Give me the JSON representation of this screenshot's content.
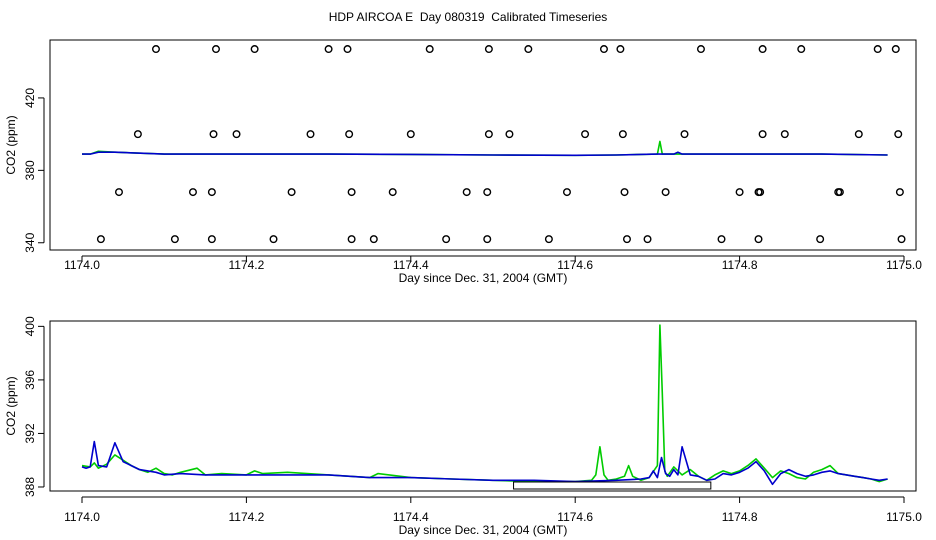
{
  "title": "HDP AIRCOA E  Day 080319  Calibrated Timeseries",
  "colors": {
    "green": "#00cc00",
    "blue": "#0000cc",
    "axis": "#000000",
    "points": "#000000"
  },
  "chart_data": [
    {
      "type": "scatter+line",
      "xlabel": "Day since Dec. 31, 2004 (GMT)",
      "ylabel": "CO2 (ppm)",
      "xlim": [
        1174.0,
        1175.0
      ],
      "ylim": [
        336,
        452
      ],
      "x_ticks": [
        1174.0,
        1174.2,
        1174.4,
        1174.6,
        1174.8,
        1175.0
      ],
      "x_tick_labels": [
        "1174.0",
        "1174.2",
        "1174.4",
        "1174.6",
        "1174.8",
        "1175.0"
      ],
      "y_ticks": [
        340,
        380,
        420
      ],
      "y_tick_labels": [
        "340",
        "380",
        "420"
      ],
      "grid": false,
      "point_series": [
        {
          "level": 342,
          "x": [
            1174.023,
            1174.113,
            1174.158,
            1174.233,
            1174.328,
            1174.355,
            1174.443,
            1174.493,
            1174.568,
            1174.663,
            1174.688,
            1174.778,
            1174.823,
            1174.898,
            1174.997
          ]
        },
        {
          "level": 368,
          "x": [
            1174.045,
            1174.135,
            1174.158,
            1174.255,
            1174.328,
            1174.378,
            1174.468,
            1174.493,
            1174.59,
            1174.66,
            1174.71,
            1174.8,
            1174.823,
            1174.825,
            1174.92,
            1174.922,
            1174.995
          ]
        },
        {
          "level": 400,
          "x": [
            1174.068,
            1174.16,
            1174.188,
            1174.278,
            1174.325,
            1174.4,
            1174.495,
            1174.52,
            1174.612,
            1174.658,
            1174.733,
            1174.828,
            1174.855,
            1174.945,
            1174.993
          ]
        },
        {
          "level": 447,
          "x": [
            1174.09,
            1174.163,
            1174.21,
            1174.3,
            1174.323,
            1174.423,
            1174.495,
            1174.543,
            1174.635,
            1174.655,
            1174.753,
            1174.828,
            1174.875,
            1174.968,
            1174.99
          ]
        }
      ],
      "series": [
        {
          "color": "green",
          "x": [
            1174.0,
            1174.01,
            1174.02,
            1174.04,
            1174.1,
            1174.2,
            1174.3,
            1174.4,
            1174.5,
            1174.6,
            1174.65,
            1174.7,
            1174.703,
            1174.706,
            1174.71,
            1174.72,
            1174.8,
            1174.9,
            1174.98
          ],
          "values": [
            389,
            389,
            390.5,
            390,
            389,
            389,
            389,
            388.8,
            388.5,
            388.3,
            388.5,
            389,
            396,
            389,
            389,
            389,
            389,
            389,
            388.5
          ]
        },
        {
          "color": "blue",
          "x": [
            1174.0,
            1174.01,
            1174.02,
            1174.04,
            1174.1,
            1174.2,
            1174.3,
            1174.4,
            1174.5,
            1174.6,
            1174.65,
            1174.7,
            1174.72,
            1174.725,
            1174.73,
            1174.8,
            1174.9,
            1174.98
          ],
          "values": [
            389,
            389,
            390,
            390,
            389,
            389,
            389,
            388.8,
            388.5,
            388.3,
            388.5,
            389,
            389,
            390,
            389,
            389,
            389,
            388.5
          ]
        }
      ]
    },
    {
      "type": "line",
      "xlabel": "Day since Dec. 31, 2004 (GMT)",
      "ylabel": "CO2 (ppm)",
      "xlim": [
        1174.0,
        1175.0
      ],
      "ylim": [
        387.7,
        400.4
      ],
      "x_ticks": [
        1174.0,
        1174.2,
        1174.4,
        1174.6,
        1174.8,
        1175.0
      ],
      "x_tick_labels": [
        "1174.0",
        "1174.2",
        "1174.4",
        "1174.6",
        "1174.8",
        "1175.0"
      ],
      "y_ticks": [
        388,
        392,
        396,
        400
      ],
      "y_tick_labels": [
        "388",
        "392",
        "396",
        "400"
      ],
      "grid": false,
      "bracket": {
        "x_start": 1174.525,
        "x_end": 1174.765
      },
      "series": [
        {
          "color": "green",
          "x": [
            1174.0,
            1174.01,
            1174.015,
            1174.02,
            1174.03,
            1174.04,
            1174.05,
            1174.06,
            1174.07,
            1174.08,
            1174.09,
            1174.1,
            1174.11,
            1174.12,
            1174.14,
            1174.15,
            1174.17,
            1174.2,
            1174.21,
            1174.22,
            1174.25,
            1174.3,
            1174.35,
            1174.36,
            1174.4,
            1174.45,
            1174.5,
            1174.55,
            1174.6,
            1174.62,
            1174.625,
            1174.63,
            1174.635,
            1174.64,
            1174.65,
            1174.66,
            1174.665,
            1174.67,
            1174.68,
            1174.69,
            1174.7,
            1174.703,
            1174.706,
            1174.709,
            1174.712,
            1174.72,
            1174.73,
            1174.74,
            1174.75,
            1174.76,
            1174.77,
            1174.78,
            1174.79,
            1174.8,
            1174.81,
            1174.82,
            1174.83,
            1174.84,
            1174.85,
            1174.86,
            1174.87,
            1174.88,
            1174.89,
            1174.9,
            1174.91,
            1174.92,
            1174.93,
            1174.94,
            1174.95,
            1174.96,
            1174.97,
            1174.98
          ],
          "values": [
            389.6,
            389.5,
            389.8,
            389.4,
            389.7,
            390.4,
            390.0,
            389.6,
            389.3,
            389.1,
            389.4,
            389.0,
            388.9,
            389.1,
            389.4,
            388.9,
            389.0,
            388.9,
            389.2,
            389.0,
            389.1,
            388.9,
            388.7,
            389.0,
            388.7,
            388.6,
            388.5,
            388.4,
            388.4,
            388.5,
            388.9,
            391.0,
            388.9,
            388.5,
            388.6,
            388.8,
            389.6,
            388.8,
            388.5,
            388.7,
            389.6,
            400.1,
            395.0,
            389.2,
            388.8,
            389.5,
            388.9,
            389.3,
            388.8,
            388.5,
            388.9,
            389.2,
            389.0,
            389.2,
            389.6,
            390.1,
            389.4,
            388.7,
            389.2,
            389.0,
            388.7,
            388.6,
            389.1,
            389.3,
            389.6,
            389.0,
            388.9,
            388.8,
            388.7,
            388.6,
            388.4,
            388.6
          ]
        },
        {
          "color": "blue",
          "x": [
            1174.0,
            1174.005,
            1174.01,
            1174.015,
            1174.02,
            1174.03,
            1174.04,
            1174.045,
            1174.05,
            1174.06,
            1174.07,
            1174.08,
            1174.09,
            1174.1,
            1174.12,
            1174.15,
            1174.2,
            1174.25,
            1174.3,
            1174.35,
            1174.4,
            1174.45,
            1174.5,
            1174.55,
            1174.6,
            1174.65,
            1174.68,
            1174.69,
            1174.695,
            1174.7,
            1174.705,
            1174.71,
            1174.715,
            1174.72,
            1174.725,
            1174.73,
            1174.74,
            1174.75,
            1174.76,
            1174.77,
            1174.78,
            1174.79,
            1174.8,
            1174.81,
            1174.82,
            1174.83,
            1174.84,
            1174.85,
            1174.86,
            1174.87,
            1174.88,
            1174.89,
            1174.9,
            1174.91,
            1174.92,
            1174.93,
            1174.94,
            1174.95,
            1174.96,
            1174.97,
            1174.98
          ],
          "values": [
            389.5,
            389.4,
            389.5,
            391.4,
            389.6,
            389.5,
            391.3,
            390.6,
            389.9,
            389.6,
            389.3,
            389.2,
            389.1,
            388.9,
            389.0,
            388.9,
            388.9,
            388.9,
            388.9,
            388.7,
            388.7,
            388.6,
            388.5,
            388.5,
            388.4,
            388.5,
            388.6,
            388.7,
            389.2,
            388.7,
            390.2,
            389.0,
            388.8,
            389.3,
            388.9,
            391.0,
            388.9,
            388.8,
            388.5,
            388.6,
            389.0,
            388.9,
            389.1,
            389.4,
            389.9,
            389.2,
            388.2,
            389.0,
            389.3,
            389.0,
            388.8,
            388.9,
            389.1,
            389.2,
            389.0,
            388.9,
            388.8,
            388.7,
            388.6,
            388.5,
            388.6
          ]
        }
      ]
    }
  ]
}
